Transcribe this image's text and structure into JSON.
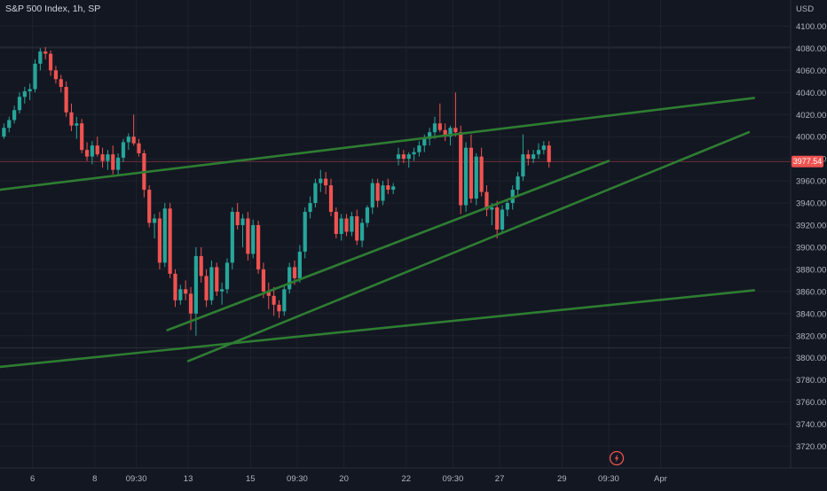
{
  "header": {
    "title": "S&P 500 Index, 1h, SP"
  },
  "colors": {
    "background": "#131722",
    "up": "#26a69a",
    "down": "#ef5350",
    "trendline": "#2e7d32",
    "grid": "#1e222d",
    "badge": "#ef5350"
  },
  "icons": {
    "replay": "lightning-icon"
  },
  "chart_data": {
    "type": "candlestick",
    "title": "S&P 500 Index, 1h, SP",
    "y_unit": "USD",
    "ylim": [
      3700,
      4120
    ],
    "y_ticks": [
      "3720.00",
      "3740.00",
      "3760.00",
      "3780.00",
      "3800.00",
      "3820.00",
      "3840.00",
      "3860.00",
      "3880.00",
      "3900.00",
      "3920.00",
      "3940.00",
      "3960.00",
      "3980.00",
      "4000.00",
      "4020.00",
      "4040.00",
      "4060.00",
      "4080.00",
      "4100.00"
    ],
    "x_ticks": [
      {
        "label": "6",
        "bar": 6
      },
      {
        "label": "8",
        "bar": 18
      },
      {
        "label": "09:30",
        "bar": 26
      },
      {
        "label": "13",
        "bar": 36
      },
      {
        "label": "15",
        "bar": 48
      },
      {
        "label": "09:30",
        "bar": 57
      },
      {
        "label": "20",
        "bar": 66
      },
      {
        "label": "22",
        "bar": 78
      },
      {
        "label": "09:30",
        "bar": 87
      },
      {
        "label": "27",
        "bar": 96
      },
      {
        "label": "29",
        "bar": 108
      },
      {
        "label": "09:30",
        "bar": 117
      },
      {
        "label": "Apr",
        "bar": 127
      }
    ],
    "last_price": "3977.54",
    "last_price_value": 3977.54,
    "reference_lines": [
      4081,
      3809
    ],
    "candles": [
      [
        4000,
        4012,
        3998,
        4008
      ],
      [
        4008,
        4018,
        4004,
        4015
      ],
      [
        4015,
        4028,
        4012,
        4024
      ],
      [
        4024,
        4040,
        4021,
        4036
      ],
      [
        4036,
        4045,
        4030,
        4041
      ],
      [
        4041,
        4048,
        4033,
        4043
      ],
      [
        4043,
        4070,
        4040,
        4066
      ],
      [
        4066,
        4080,
        4060,
        4077
      ],
      [
        4077,
        4081,
        4070,
        4075
      ],
      [
        4075,
        4078,
        4055,
        4060
      ],
      [
        4060,
        4064,
        4048,
        4052
      ],
      [
        4052,
        4056,
        4040,
        4045
      ],
      [
        4045,
        4050,
        4018,
        4022
      ],
      [
        4022,
        4030,
        4005,
        4010
      ],
      [
        4010,
        4018,
        3998,
        4012
      ],
      [
        4012,
        4016,
        3985,
        3988
      ],
      [
        3988,
        3995,
        3978,
        3982
      ],
      [
        3982,
        3996,
        3975,
        3992
      ],
      [
        3992,
        4000,
        3982,
        3984
      ],
      [
        3984,
        3990,
        3972,
        3978
      ],
      [
        3978,
        3988,
        3970,
        3984
      ],
      [
        3984,
        3992,
        3966,
        3970
      ],
      [
        3970,
        3985,
        3966,
        3981
      ],
      [
        3981,
        3998,
        3977,
        3995
      ],
      [
        3995,
        4003,
        3988,
        4000
      ],
      [
        4000,
        4020,
        3992,
        3994
      ],
      [
        3994,
        3998,
        3982,
        3985
      ],
      [
        3985,
        3988,
        3945,
        3952
      ],
      [
        3952,
        3956,
        3918,
        3922
      ],
      [
        3922,
        3930,
        3908,
        3926
      ],
      [
        3926,
        3932,
        3880,
        3886
      ],
      [
        3886,
        3940,
        3882,
        3935
      ],
      [
        3935,
        3940,
        3872,
        3876
      ],
      [
        3876,
        3880,
        3846,
        3852
      ],
      [
        3852,
        3866,
        3848,
        3862
      ],
      [
        3862,
        3870,
        3852,
        3858
      ],
      [
        3858,
        3864,
        3825,
        3840
      ],
      [
        3840,
        3900,
        3820,
        3892
      ],
      [
        3892,
        3900,
        3868,
        3874
      ],
      [
        3874,
        3880,
        3846,
        3852
      ],
      [
        3852,
        3888,
        3848,
        3882
      ],
      [
        3882,
        3886,
        3856,
        3860
      ],
      [
        3860,
        3868,
        3848,
        3862
      ],
      [
        3862,
        3890,
        3858,
        3886
      ],
      [
        3886,
        3936,
        3880,
        3932
      ],
      [
        3932,
        3940,
        3916,
        3920
      ],
      [
        3920,
        3930,
        3900,
        3926
      ],
      [
        3926,
        3932,
        3888,
        3894
      ],
      [
        3894,
        3925,
        3890,
        3920
      ],
      [
        3920,
        3924,
        3876,
        3880
      ],
      [
        3880,
        3886,
        3854,
        3860
      ],
      [
        3860,
        3868,
        3844,
        3856
      ],
      [
        3856,
        3864,
        3838,
        3848
      ],
      [
        3848,
        3852,
        3836,
        3842
      ],
      [
        3842,
        3866,
        3838,
        3862
      ],
      [
        3862,
        3886,
        3858,
        3882
      ],
      [
        3882,
        3888,
        3866,
        3872
      ],
      [
        3872,
        3902,
        3868,
        3896
      ],
      [
        3896,
        3936,
        3890,
        3932
      ],
      [
        3932,
        3946,
        3926,
        3940
      ],
      [
        3940,
        3962,
        3936,
        3958
      ],
      [
        3958,
        3970,
        3950,
        3962
      ],
      [
        3962,
        3968,
        3948,
        3956
      ],
      [
        3956,
        3962,
        3928,
        3932
      ],
      [
        3932,
        3936,
        3908,
        3912
      ],
      [
        3912,
        3930,
        3906,
        3926
      ],
      [
        3926,
        3930,
        3910,
        3914
      ],
      [
        3914,
        3932,
        3910,
        3928
      ],
      [
        3928,
        3934,
        3902,
        3906
      ],
      [
        3906,
        3926,
        3900,
        3922
      ],
      [
        3922,
        3938,
        3918,
        3936
      ],
      [
        3936,
        3962,
        3930,
        3958
      ],
      [
        3958,
        3962,
        3936,
        3942
      ],
      [
        3942,
        3960,
        3938,
        3956
      ],
      [
        3956,
        3962,
        3948,
        3952
      ],
      [
        3952,
        3958,
        3948,
        3955
      ],
      [
        3980,
        3990,
        3974,
        3984
      ],
      [
        3984,
        3988,
        3976,
        3980
      ],
      [
        3980,
        3986,
        3972,
        3984
      ],
      [
        3984,
        3990,
        3978,
        3986
      ],
      [
        3986,
        3996,
        3982,
        3992
      ],
      [
        3992,
        4002,
        3986,
        3998
      ],
      [
        3998,
        4008,
        3992,
        4004
      ],
      [
        4004,
        4018,
        3998,
        4012
      ],
      [
        4012,
        4030,
        4004,
        4006
      ],
      [
        4006,
        4012,
        3996,
        4000
      ],
      [
        4000,
        4010,
        3992,
        4008
      ],
      [
        4008,
        4040,
        4000,
        4004
      ],
      [
        4004,
        4010,
        3930,
        3938
      ],
      [
        3938,
        3995,
        3932,
        3990
      ],
      [
        3990,
        4002,
        3940,
        3944
      ],
      [
        3944,
        3985,
        3938,
        3982
      ],
      [
        3982,
        3990,
        3946,
        3950
      ],
      [
        3950,
        3956,
        3928,
        3934
      ],
      [
        3934,
        3940,
        3920,
        3936
      ],
      [
        3936,
        3942,
        3908,
        3916
      ],
      [
        3916,
        3938,
        3912,
        3934
      ],
      [
        3934,
        3944,
        3928,
        3940
      ],
      [
        3940,
        3956,
        3934,
        3952
      ],
      [
        3952,
        3968,
        3946,
        3964
      ],
      [
        3964,
        4002,
        3960,
        3984
      ],
      [
        3984,
        3988,
        3974,
        3980
      ],
      [
        3980,
        3988,
        3976,
        3984
      ],
      [
        3984,
        3994,
        3980,
        3988
      ],
      [
        3988,
        3996,
        3984,
        3992
      ],
      [
        3992,
        3996,
        3972,
        3977
      ]
    ],
    "trendlines": [
      {
        "from": {
          "bar": -2,
          "price": 3951
        },
        "to": {
          "bar": 145,
          "price": 4035
        }
      },
      {
        "from": {
          "bar": 32,
          "price": 3825
        },
        "to": {
          "bar": 117,
          "price": 3978
        }
      },
      {
        "from": {
          "bar": 36,
          "price": 3797
        },
        "to": {
          "bar": 144,
          "price": 4004
        }
      },
      {
        "from": {
          "bar": -2,
          "price": 3791
        },
        "to": {
          "bar": 145,
          "price": 3861
        }
      }
    ]
  }
}
